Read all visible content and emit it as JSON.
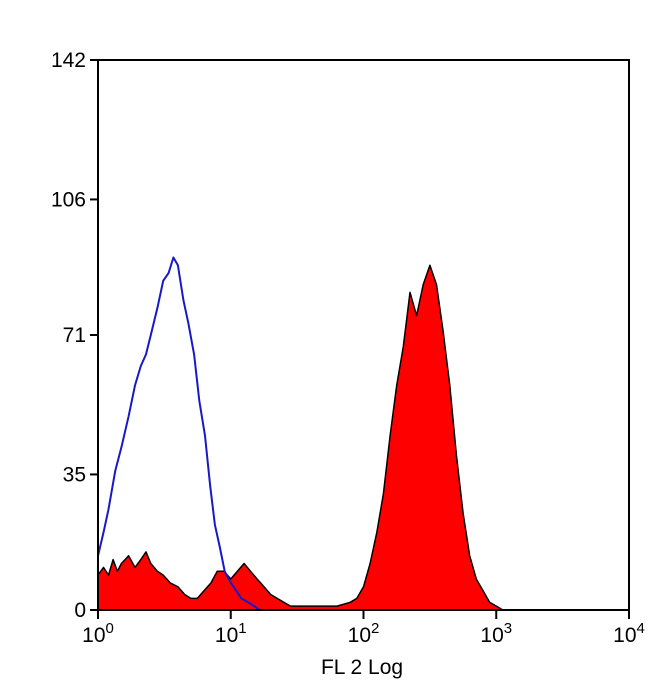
{
  "chart_data": {
    "type": "area",
    "xlabel": "FL 2 Log",
    "ylabel": "",
    "x_scale": "log",
    "xlim": [
      1,
      10000
    ],
    "ylim": [
      0,
      142
    ],
    "grid": false,
    "colors": {
      "filled_histogram": "#ff0000",
      "filled_outline": "#000000",
      "open_histogram": "#1818c8",
      "frame": "#000000"
    },
    "y_ticks": [
      {
        "value": 0,
        "label": "0"
      },
      {
        "value": 35,
        "label": "35"
      },
      {
        "value": 71,
        "label": "71"
      },
      {
        "value": 106,
        "label": "106"
      },
      {
        "value": 142,
        "label": "142"
      }
    ],
    "x_ticks": [
      {
        "value": 1,
        "base": "10",
        "exp": "0"
      },
      {
        "value": 10,
        "base": "10",
        "exp": "1"
      },
      {
        "value": 100,
        "base": "10",
        "exp": "2"
      },
      {
        "value": 1000,
        "base": "10",
        "exp": "3"
      },
      {
        "value": 10000,
        "base": "10",
        "exp": "4"
      }
    ],
    "series": [
      {
        "style": "filled",
        "points": [
          [
            1.0,
            9
          ],
          [
            1.1,
            11
          ],
          [
            1.2,
            9
          ],
          [
            1.3,
            13
          ],
          [
            1.4,
            10
          ],
          [
            1.5,
            12
          ],
          [
            1.7,
            14
          ],
          [
            1.9,
            11
          ],
          [
            2.1,
            13
          ],
          [
            2.3,
            15
          ],
          [
            2.5,
            12
          ],
          [
            2.8,
            10
          ],
          [
            3.1,
            9
          ],
          [
            3.5,
            7
          ],
          [
            4.0,
            6
          ],
          [
            4.5,
            4
          ],
          [
            5.0,
            3
          ],
          [
            5.6,
            3
          ],
          [
            6.3,
            5
          ],
          [
            7.1,
            7
          ],
          [
            7.9,
            10
          ],
          [
            8.9,
            10
          ],
          [
            10.0,
            8
          ],
          [
            11.2,
            10
          ],
          [
            12.6,
            12
          ],
          [
            14.1,
            10
          ],
          [
            15.8,
            8
          ],
          [
            17.8,
            6
          ],
          [
            20.0,
            4
          ],
          [
            22.4,
            3
          ],
          [
            25.1,
            2
          ],
          [
            28.2,
            1
          ],
          [
            31.6,
            1
          ],
          [
            39.8,
            1
          ],
          [
            50.1,
            1
          ],
          [
            63.1,
            1
          ],
          [
            79.4,
            2
          ],
          [
            89.1,
            3
          ],
          [
            100.0,
            6
          ],
          [
            112.2,
            12
          ],
          [
            125.9,
            20
          ],
          [
            141.3,
            30
          ],
          [
            158.5,
            45
          ],
          [
            177.8,
            58
          ],
          [
            199.5,
            68
          ],
          [
            223.9,
            82
          ],
          [
            251.2,
            76
          ],
          [
            281.8,
            84
          ],
          [
            316.2,
            89
          ],
          [
            354.8,
            84
          ],
          [
            398.1,
            72
          ],
          [
            446.7,
            58
          ],
          [
            501.2,
            40
          ],
          [
            562.3,
            25
          ],
          [
            631.0,
            14
          ],
          [
            707.9,
            8
          ],
          [
            794.3,
            5
          ],
          [
            891.3,
            2
          ],
          [
            1000.0,
            1
          ],
          [
            1122.0,
            0
          ]
        ]
      },
      {
        "style": "outline",
        "points": [
          [
            1.0,
            14
          ],
          [
            1.1,
            20
          ],
          [
            1.2,
            26
          ],
          [
            1.35,
            36
          ],
          [
            1.5,
            42
          ],
          [
            1.7,
            50
          ],
          [
            1.9,
            58
          ],
          [
            2.1,
            63
          ],
          [
            2.3,
            66
          ],
          [
            2.5,
            71
          ],
          [
            2.8,
            78
          ],
          [
            3.1,
            85
          ],
          [
            3.4,
            87
          ],
          [
            3.7,
            91
          ],
          [
            4.0,
            89
          ],
          [
            4.4,
            80
          ],
          [
            4.8,
            74
          ],
          [
            5.3,
            66
          ],
          [
            5.8,
            54
          ],
          [
            6.4,
            45
          ],
          [
            7.0,
            32
          ],
          [
            7.6,
            22
          ],
          [
            8.3,
            16
          ],
          [
            9.0,
            10
          ],
          [
            10.0,
            7
          ],
          [
            11.0,
            5
          ],
          [
            12.0,
            3
          ],
          [
            13.5,
            2
          ],
          [
            15.0,
            1
          ],
          [
            16.5,
            0
          ]
        ]
      }
    ]
  }
}
